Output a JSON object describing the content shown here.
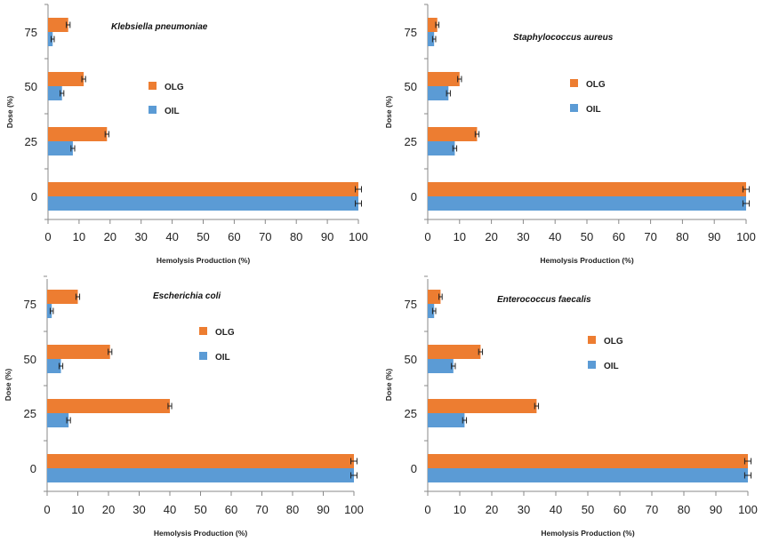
{
  "colors": {
    "olg": "#ED7D31",
    "oil": "#5B9BD5",
    "axis": "#888888",
    "errorbar": "#222222"
  },
  "chart_data": [
    {
      "type": "bar",
      "orientation": "horizontal",
      "title": "Klebsiella pneumoniae",
      "xlabel": "Hemolysis Production (%)",
      "ylabel": "Dose (%)",
      "categories": [
        "0",
        "25",
        "50",
        "75"
      ],
      "xlim": [
        0,
        100
      ],
      "xticks": [
        "0",
        "10",
        "20",
        "30",
        "40",
        "50",
        "60",
        "70",
        "80",
        "90",
        "100"
      ],
      "series": [
        {
          "name": "OLG",
          "values": [
            100,
            19,
            11.5,
            6.5
          ],
          "errors": [
            1,
            0.6,
            0.6,
            0.6
          ]
        },
        {
          "name": "OIL",
          "values": [
            100,
            8,
            4.5,
            1.5
          ],
          "errors": [
            1,
            0.6,
            0.6,
            0.5
          ]
        }
      ]
    },
    {
      "type": "bar",
      "orientation": "horizontal",
      "title": "Staphylococcus aureus",
      "xlabel": "Hemolysis Production (%)",
      "ylabel": "Dose (%)",
      "categories": [
        "0",
        "25",
        "50",
        "75"
      ],
      "xlim": [
        0,
        100
      ],
      "xticks": [
        "0",
        "10",
        "20",
        "30",
        "40",
        "50",
        "60",
        "70",
        "80",
        "90",
        "100"
      ],
      "series": [
        {
          "name": "OLG",
          "values": [
            100,
            15.5,
            10,
            3
          ],
          "errors": [
            1,
            0.6,
            0.6,
            0.5
          ]
        },
        {
          "name": "OIL",
          "values": [
            100,
            8.5,
            6.5,
            2
          ],
          "errors": [
            1,
            0.6,
            0.6,
            0.5
          ]
        }
      ]
    },
    {
      "type": "bar",
      "orientation": "horizontal",
      "title": "Escherichia coli",
      "xlabel": "Hemolysis Production (%)",
      "ylabel": "Dose (%)",
      "categories": [
        "0",
        "25",
        "50",
        "75"
      ],
      "xlim": [
        0,
        100
      ],
      "xticks": [
        "0",
        "10",
        "20",
        "30",
        "40",
        "50",
        "60",
        "70",
        "80",
        "90",
        "100"
      ],
      "series": [
        {
          "name": "OLG",
          "values": [
            100,
            40,
            20.5,
            10
          ],
          "errors": [
            1,
            0.6,
            0.6,
            0.6
          ]
        },
        {
          "name": "OIL",
          "values": [
            100,
            7,
            4.5,
            1.5
          ],
          "errors": [
            1,
            0.6,
            0.6,
            0.5
          ]
        }
      ]
    },
    {
      "type": "bar",
      "orientation": "horizontal",
      "title": "Enterococcus faecalis",
      "xlabel": "Hemolysis Production (%)",
      "ylabel": "Dose (%)",
      "categories": [
        "0",
        "25",
        "50",
        "75"
      ],
      "xlim": [
        0,
        100
      ],
      "xticks": [
        "0",
        "10",
        "20",
        "30",
        "40",
        "50",
        "60",
        "70",
        "80",
        "90",
        "100"
      ],
      "series": [
        {
          "name": "OLG",
          "values": [
            100,
            34,
            16.5,
            4
          ],
          "errors": [
            1,
            0.6,
            0.6,
            0.5
          ]
        },
        {
          "name": "OIL",
          "values": [
            100,
            11.5,
            8,
            2
          ],
          "errors": [
            1,
            0.6,
            0.6,
            0.5
          ]
        }
      ]
    }
  ]
}
